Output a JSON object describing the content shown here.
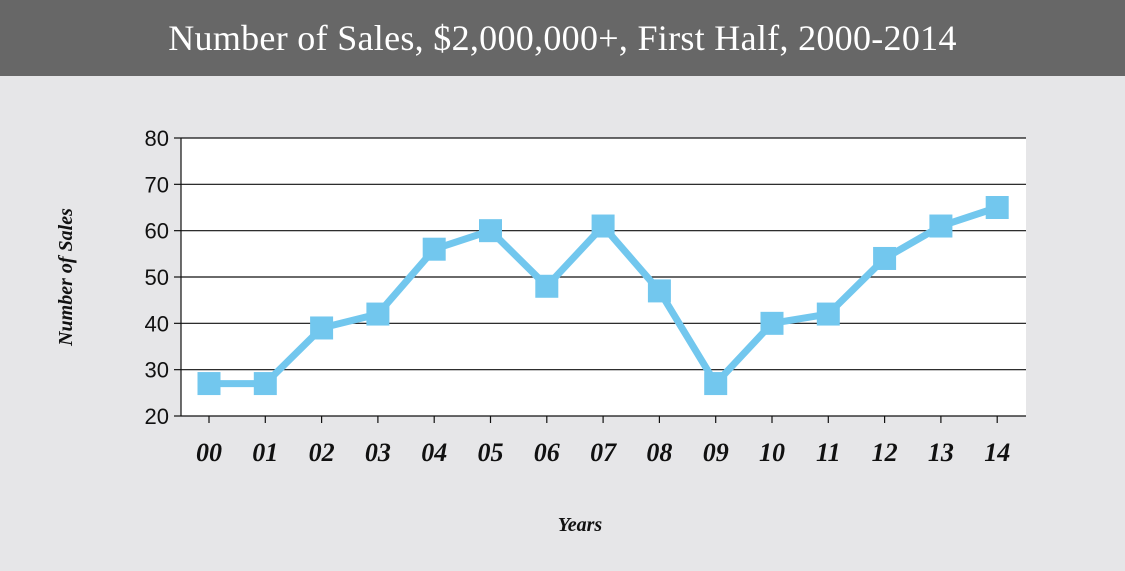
{
  "chart_data": {
    "type": "line",
    "title": "Number of Sales, $2,000,000+, First Half, 2000-2014",
    "xlabel": "Years",
    "ylabel": "Number of Sales",
    "categories": [
      "00",
      "01",
      "02",
      "03",
      "04",
      "05",
      "06",
      "07",
      "08",
      "09",
      "10",
      "11",
      "12",
      "13",
      "14"
    ],
    "series": [
      {
        "values": [
          27,
          27,
          39,
          42,
          56,
          60,
          48,
          61,
          47,
          27,
          40,
          42,
          54,
          61,
          65
        ]
      }
    ],
    "ylim": [
      20,
      80
    ],
    "yticks": [
      "20",
      "30",
      "40",
      "50",
      "60",
      "70",
      "80"
    ],
    "grid": true,
    "legend": "none",
    "colors": {
      "line": "#72c7ee",
      "title_bar": "#676767",
      "background": "#e6e6e8",
      "plot_area": "#ffffff"
    }
  }
}
